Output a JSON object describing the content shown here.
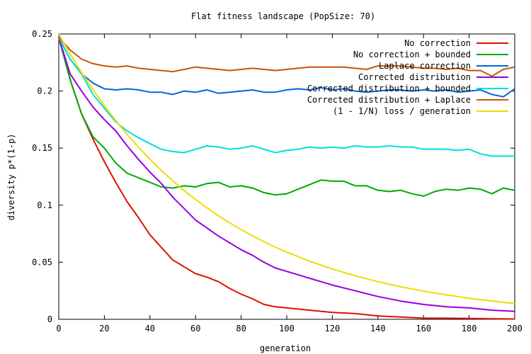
{
  "chart_data": {
    "type": "line",
    "title": "Flat fitness landscape (PopSize: 70)",
    "xlabel": "generation",
    "ylabel": "diversity p*(1-p)",
    "xlim": [
      0,
      200
    ],
    "ylim": [
      0,
      0.25
    ],
    "xticks": [
      0,
      20,
      40,
      60,
      80,
      100,
      120,
      140,
      160,
      180,
      200
    ],
    "yticks": [
      0,
      0.05,
      0.1,
      0.15,
      0.2,
      0.25
    ],
    "xtick_labels": [
      "0",
      "20",
      "40",
      "60",
      "80",
      "100",
      "120",
      "140",
      "160",
      "180",
      "200"
    ],
    "ytick_labels": [
      "0",
      "0.05",
      "0.1",
      "0.15",
      "0.2",
      "0.25"
    ],
    "legend_position": "top-right",
    "grid": false,
    "series": [
      {
        "name": "No correction",
        "color": "#dd1100",
        "points": [
          [
            0,
            0.247
          ],
          [
            5,
            0.21
          ],
          [
            10,
            0.18
          ],
          [
            15,
            0.158
          ],
          [
            20,
            0.138
          ],
          [
            25,
            0.12
          ],
          [
            30,
            0.103
          ],
          [
            35,
            0.089
          ],
          [
            40,
            0.074
          ],
          [
            45,
            0.063
          ],
          [
            50,
            0.052
          ],
          [
            55,
            0.046
          ],
          [
            60,
            0.04
          ],
          [
            65,
            0.037
          ],
          [
            70,
            0.033
          ],
          [
            75,
            0.027
          ],
          [
            80,
            0.022
          ],
          [
            85,
            0.018
          ],
          [
            90,
            0.013
          ],
          [
            95,
            0.011
          ],
          [
            100,
            0.01
          ],
          [
            110,
            0.008
          ],
          [
            120,
            0.006
          ],
          [
            130,
            0.005
          ],
          [
            140,
            0.003
          ],
          [
            150,
            0.002
          ],
          [
            160,
            0.001
          ],
          [
            170,
            0.001
          ],
          [
            180,
            0.0008
          ],
          [
            190,
            0.0005
          ],
          [
            200,
            0.0003
          ]
        ]
      },
      {
        "name": "No correction + bounded",
        "color": "#00aa00",
        "points": [
          [
            0,
            0.247
          ],
          [
            5,
            0.21
          ],
          [
            10,
            0.18
          ],
          [
            15,
            0.16
          ],
          [
            20,
            0.15
          ],
          [
            25,
            0.137
          ],
          [
            30,
            0.128
          ],
          [
            35,
            0.124
          ],
          [
            40,
            0.12
          ],
          [
            45,
            0.116
          ],
          [
            50,
            0.115
          ],
          [
            55,
            0.117
          ],
          [
            60,
            0.116
          ],
          [
            65,
            0.119
          ],
          [
            70,
            0.12
          ],
          [
            75,
            0.116
          ],
          [
            80,
            0.117
          ],
          [
            85,
            0.115
          ],
          [
            90,
            0.111
          ],
          [
            95,
            0.109
          ],
          [
            100,
            0.11
          ],
          [
            105,
            0.114
          ],
          [
            110,
            0.118
          ],
          [
            115,
            0.122
          ],
          [
            120,
            0.121
          ],
          [
            125,
            0.121
          ],
          [
            130,
            0.117
          ],
          [
            135,
            0.117
          ],
          [
            140,
            0.113
          ],
          [
            145,
            0.112
          ],
          [
            150,
            0.113
          ],
          [
            155,
            0.11
          ],
          [
            160,
            0.108
          ],
          [
            165,
            0.112
          ],
          [
            170,
            0.114
          ],
          [
            175,
            0.113
          ],
          [
            180,
            0.115
          ],
          [
            185,
            0.114
          ],
          [
            190,
            0.11
          ],
          [
            195,
            0.115
          ],
          [
            200,
            0.113
          ]
        ]
      },
      {
        "name": "Laplace correction",
        "color": "#0066dd",
        "points": [
          [
            0,
            0.247
          ],
          [
            5,
            0.228
          ],
          [
            10,
            0.215
          ],
          [
            15,
            0.207
          ],
          [
            20,
            0.202
          ],
          [
            25,
            0.201
          ],
          [
            30,
            0.202
          ],
          [
            35,
            0.201
          ],
          [
            40,
            0.199
          ],
          [
            45,
            0.199
          ],
          [
            50,
            0.197
          ],
          [
            55,
            0.2
          ],
          [
            60,
            0.199
          ],
          [
            65,
            0.201
          ],
          [
            70,
            0.198
          ],
          [
            75,
            0.199
          ],
          [
            80,
            0.2
          ],
          [
            85,
            0.201
          ],
          [
            90,
            0.199
          ],
          [
            95,
            0.199
          ],
          [
            100,
            0.201
          ],
          [
            105,
            0.202
          ],
          [
            110,
            0.201
          ],
          [
            115,
            0.203
          ],
          [
            120,
            0.201
          ],
          [
            125,
            0.202
          ],
          [
            130,
            0.2
          ],
          [
            135,
            0.199
          ],
          [
            140,
            0.2
          ],
          [
            145,
            0.201
          ],
          [
            150,
            0.201
          ],
          [
            155,
            0.2
          ],
          [
            160,
            0.201
          ],
          [
            165,
            0.2
          ],
          [
            170,
            0.201
          ],
          [
            175,
            0.199
          ],
          [
            180,
            0.2
          ],
          [
            185,
            0.201
          ],
          [
            190,
            0.197
          ],
          [
            195,
            0.195
          ],
          [
            200,
            0.202
          ]
        ]
      },
      {
        "name": "Corrected distribution",
        "color": "#9900dd",
        "points": [
          [
            0,
            0.247
          ],
          [
            5,
            0.215
          ],
          [
            10,
            0.2
          ],
          [
            15,
            0.186
          ],
          [
            20,
            0.175
          ],
          [
            25,
            0.165
          ],
          [
            30,
            0.152
          ],
          [
            35,
            0.14
          ],
          [
            40,
            0.129
          ],
          [
            45,
            0.119
          ],
          [
            50,
            0.107
          ],
          [
            55,
            0.097
          ],
          [
            60,
            0.087
          ],
          [
            65,
            0.08
          ],
          [
            70,
            0.073
          ],
          [
            75,
            0.067
          ],
          [
            80,
            0.061
          ],
          [
            85,
            0.056
          ],
          [
            90,
            0.05
          ],
          [
            95,
            0.045
          ],
          [
            100,
            0.042
          ],
          [
            110,
            0.036
          ],
          [
            120,
            0.03
          ],
          [
            130,
            0.025
          ],
          [
            140,
            0.02
          ],
          [
            150,
            0.016
          ],
          [
            160,
            0.013
          ],
          [
            170,
            0.011
          ],
          [
            180,
            0.01
          ],
          [
            190,
            0.008
          ],
          [
            200,
            0.007
          ]
        ]
      },
      {
        "name": "Corrected distribution + bounded",
        "color": "#00dddd",
        "points": [
          [
            0,
            0.247
          ],
          [
            5,
            0.228
          ],
          [
            10,
            0.215
          ],
          [
            15,
            0.197
          ],
          [
            20,
            0.185
          ],
          [
            25,
            0.173
          ],
          [
            30,
            0.165
          ],
          [
            35,
            0.159
          ],
          [
            40,
            0.154
          ],
          [
            45,
            0.149
          ],
          [
            50,
            0.147
          ],
          [
            55,
            0.146
          ],
          [
            60,
            0.149
          ],
          [
            65,
            0.152
          ],
          [
            70,
            0.151
          ],
          [
            75,
            0.149
          ],
          [
            80,
            0.15
          ],
          [
            85,
            0.152
          ],
          [
            90,
            0.149
          ],
          [
            95,
            0.146
          ],
          [
            100,
            0.148
          ],
          [
            105,
            0.149
          ],
          [
            110,
            0.151
          ],
          [
            115,
            0.15
          ],
          [
            120,
            0.151
          ],
          [
            125,
            0.15
          ],
          [
            130,
            0.152
          ],
          [
            135,
            0.151
          ],
          [
            140,
            0.151
          ],
          [
            145,
            0.152
          ],
          [
            150,
            0.151
          ],
          [
            155,
            0.151
          ],
          [
            160,
            0.149
          ],
          [
            165,
            0.149
          ],
          [
            170,
            0.149
          ],
          [
            175,
            0.148
          ],
          [
            180,
            0.149
          ],
          [
            185,
            0.145
          ],
          [
            190,
            0.143
          ],
          [
            195,
            0.143
          ],
          [
            200,
            0.143
          ]
        ]
      },
      {
        "name": "Corrected distribution + Laplace",
        "color": "#cc5500",
        "points": [
          [
            0,
            0.247
          ],
          [
            5,
            0.236
          ],
          [
            10,
            0.228
          ],
          [
            15,
            0.224
          ],
          [
            20,
            0.222
          ],
          [
            25,
            0.221
          ],
          [
            30,
            0.222
          ],
          [
            35,
            0.22
          ],
          [
            40,
            0.219
          ],
          [
            45,
            0.218
          ],
          [
            50,
            0.217
          ],
          [
            55,
            0.219
          ],
          [
            60,
            0.221
          ],
          [
            65,
            0.22
          ],
          [
            70,
            0.219
          ],
          [
            75,
            0.218
          ],
          [
            80,
            0.219
          ],
          [
            85,
            0.22
          ],
          [
            90,
            0.219
          ],
          [
            95,
            0.218
          ],
          [
            100,
            0.219
          ],
          [
            105,
            0.22
          ],
          [
            110,
            0.221
          ],
          [
            115,
            0.221
          ],
          [
            120,
            0.221
          ],
          [
            125,
            0.221
          ],
          [
            130,
            0.22
          ],
          [
            135,
            0.219
          ],
          [
            140,
            0.222
          ],
          [
            145,
            0.222
          ],
          [
            150,
            0.222
          ],
          [
            155,
            0.221
          ],
          [
            160,
            0.22
          ],
          [
            165,
            0.22
          ],
          [
            170,
            0.219
          ],
          [
            175,
            0.22
          ],
          [
            180,
            0.218
          ],
          [
            185,
            0.218
          ],
          [
            190,
            0.213
          ],
          [
            195,
            0.219
          ],
          [
            200,
            0.221
          ]
        ]
      },
      {
        "name": "(1 - 1/N) loss / generation",
        "color": "#eedd00",
        "points": [
          [
            0,
            0.25
          ],
          [
            5,
            0.2324
          ],
          [
            10,
            0.2162
          ],
          [
            15,
            0.2012
          ],
          [
            20,
            0.1872
          ],
          [
            25,
            0.1741
          ],
          [
            30,
            0.162
          ],
          [
            35,
            0.1507
          ],
          [
            40,
            0.1402
          ],
          [
            45,
            0.1304
          ],
          [
            50,
            0.1213
          ],
          [
            55,
            0.1128
          ],
          [
            60,
            0.105
          ],
          [
            65,
            0.0977
          ],
          [
            70,
            0.0908
          ],
          [
            75,
            0.0845
          ],
          [
            80,
            0.0786
          ],
          [
            85,
            0.0731
          ],
          [
            90,
            0.068
          ],
          [
            95,
            0.0633
          ],
          [
            100,
            0.0589
          ],
          [
            110,
            0.0509
          ],
          [
            120,
            0.0441
          ],
          [
            130,
            0.0381
          ],
          [
            140,
            0.033
          ],
          [
            150,
            0.0285
          ],
          [
            160,
            0.0247
          ],
          [
            170,
            0.0214
          ],
          [
            180,
            0.0185
          ],
          [
            190,
            0.016
          ],
          [
            200,
            0.0138
          ]
        ]
      }
    ]
  }
}
